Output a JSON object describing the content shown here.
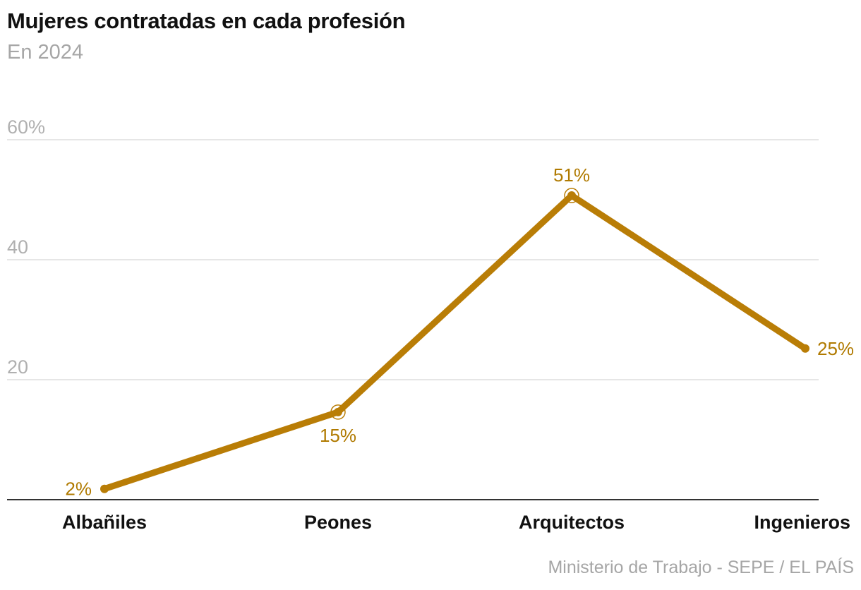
{
  "header": {
    "title": "Mujeres contratadas en cada profesión",
    "subtitle": "En 2024"
  },
  "footer": {
    "source": "Ministerio de Trabajo - SEPE / EL PAÍS"
  },
  "colors": {
    "line": "#b97d06",
    "grid": "#dddddd",
    "axis": "#333333"
  },
  "chart_data": {
    "type": "line",
    "title": "Mujeres contratadas en cada profesión",
    "subtitle": "En 2024",
    "categories": [
      "Albañiles",
      "Peones",
      "Arquitectos",
      "Ingenieros"
    ],
    "series": [
      {
        "name": "Mujeres contratadas",
        "values": [
          1.8,
          14.6,
          50.7,
          25.2
        ],
        "labels": [
          "2%",
          "15%",
          "51%",
          "25%"
        ]
      }
    ],
    "ylim": [
      0,
      60
    ],
    "yticks": [
      20,
      40,
      60
    ],
    "ytick_labels": [
      "20",
      "40",
      "60%"
    ],
    "xlabel": "",
    "ylabel": "",
    "grid": true
  }
}
